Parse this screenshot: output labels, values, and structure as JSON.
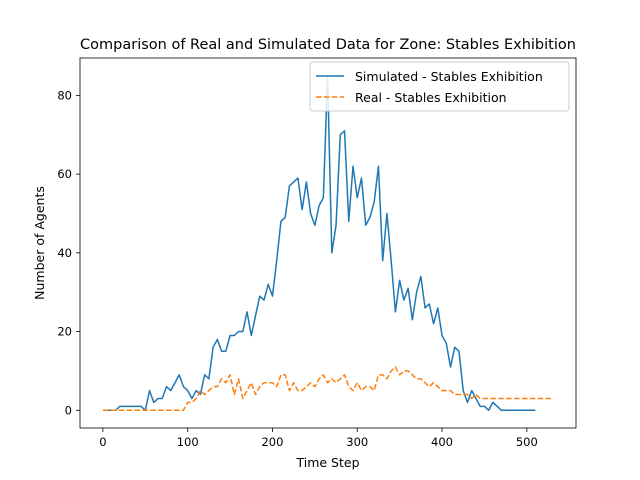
{
  "chart_data": {
    "type": "line",
    "title": "Comparison of Real and Simulated Data for Zone: Stables Exhibition",
    "xlabel": "Time Step",
    "ylabel": "Number of Agents",
    "xlim": [
      -27,
      558
    ],
    "ylim": [
      -4.5,
      89.5
    ],
    "xticks": [
      0,
      100,
      200,
      300,
      400,
      500
    ],
    "yticks": [
      0,
      20,
      40,
      60,
      80
    ],
    "grid": false,
    "legend_position": "top-right",
    "series": [
      {
        "name": "Simulated - Stables Exhibition",
        "color": "#1f77b4",
        "style": "solid",
        "x": [
          0,
          5,
          10,
          15,
          20,
          25,
          30,
          35,
          40,
          45,
          50,
          55,
          60,
          65,
          70,
          75,
          80,
          85,
          90,
          95,
          100,
          105,
          110,
          115,
          120,
          125,
          130,
          135,
          140,
          145,
          150,
          155,
          160,
          165,
          170,
          175,
          180,
          185,
          190,
          195,
          200,
          205,
          210,
          215,
          220,
          225,
          230,
          235,
          240,
          245,
          250,
          255,
          260,
          265,
          270,
          275,
          280,
          285,
          290,
          295,
          300,
          305,
          310,
          315,
          320,
          325,
          330,
          335,
          340,
          345,
          350,
          355,
          360,
          365,
          370,
          375,
          380,
          385,
          390,
          395,
          400,
          405,
          410,
          415,
          420,
          425,
          430,
          435,
          440,
          445,
          450,
          455,
          460,
          465,
          470,
          475,
          480,
          485,
          490,
          495,
          500,
          505,
          510
        ],
        "y": [
          0,
          0,
          0,
          0,
          1,
          1,
          1,
          1,
          1,
          1,
          0,
          5,
          2,
          3,
          3,
          6,
          5,
          7,
          9,
          6,
          5,
          3,
          5,
          4,
          9,
          8,
          16,
          18,
          15,
          15,
          19,
          19,
          20,
          20,
          25,
          19,
          24,
          29,
          28,
          32,
          29,
          38,
          48,
          49,
          57,
          58,
          59,
          51,
          58,
          50,
          47,
          52,
          54,
          85,
          40,
          47,
          70,
          71,
          48,
          62,
          54,
          59,
          47,
          49,
          53,
          62,
          38,
          50,
          38,
          25,
          33,
          28,
          31,
          23,
          30,
          34,
          26,
          27,
          22,
          26,
          19,
          17,
          11,
          16,
          15,
          5,
          2,
          5,
          3,
          1,
          1,
          0,
          2,
          1,
          0,
          0,
          0,
          0,
          0,
          0,
          0,
          0,
          0
        ]
      },
      {
        "name": "Real - Stables Exhibition",
        "color": "#ff7f0e",
        "style": "dashed",
        "x": [
          0,
          5,
          10,
          15,
          20,
          25,
          30,
          35,
          40,
          45,
          50,
          55,
          60,
          65,
          70,
          75,
          80,
          85,
          90,
          95,
          100,
          105,
          110,
          115,
          120,
          125,
          130,
          135,
          140,
          145,
          150,
          155,
          160,
          165,
          170,
          175,
          180,
          185,
          190,
          195,
          200,
          205,
          210,
          215,
          220,
          225,
          230,
          235,
          240,
          245,
          250,
          255,
          260,
          265,
          270,
          275,
          280,
          285,
          290,
          295,
          300,
          305,
          310,
          315,
          320,
          325,
          330,
          335,
          340,
          345,
          350,
          355,
          360,
          365,
          370,
          375,
          380,
          385,
          390,
          395,
          400,
          405,
          410,
          415,
          420,
          425,
          430,
          435,
          440,
          445,
          450,
          455,
          460,
          465,
          470,
          475,
          480,
          485,
          490,
          495,
          500,
          505,
          510,
          515,
          520,
          525,
          530
        ],
        "y": [
          0,
          0,
          0,
          0,
          0,
          0,
          0,
          0,
          0,
          0,
          0,
          0,
          0,
          0,
          0,
          0,
          0,
          0,
          0,
          0,
          2,
          2,
          3,
          5,
          4,
          5,
          6,
          6,
          8,
          7,
          9,
          4,
          8,
          3,
          5,
          7,
          4,
          6,
          7,
          7,
          7,
          6,
          9,
          9,
          5,
          7,
          5,
          5,
          6,
          7,
          6,
          8,
          9,
          7,
          8,
          7,
          8,
          9,
          6,
          5,
          7,
          5,
          6,
          6,
          5,
          9,
          9,
          8,
          10,
          11,
          9,
          10,
          10,
          9,
          8,
          8,
          7,
          6,
          7,
          6,
          5,
          5,
          5,
          4,
          4,
          4,
          4,
          3,
          4,
          3,
          3,
          3,
          3,
          3,
          3,
          3,
          3,
          3,
          3,
          3,
          3,
          3,
          3,
          3,
          3,
          3,
          3
        ]
      }
    ]
  }
}
